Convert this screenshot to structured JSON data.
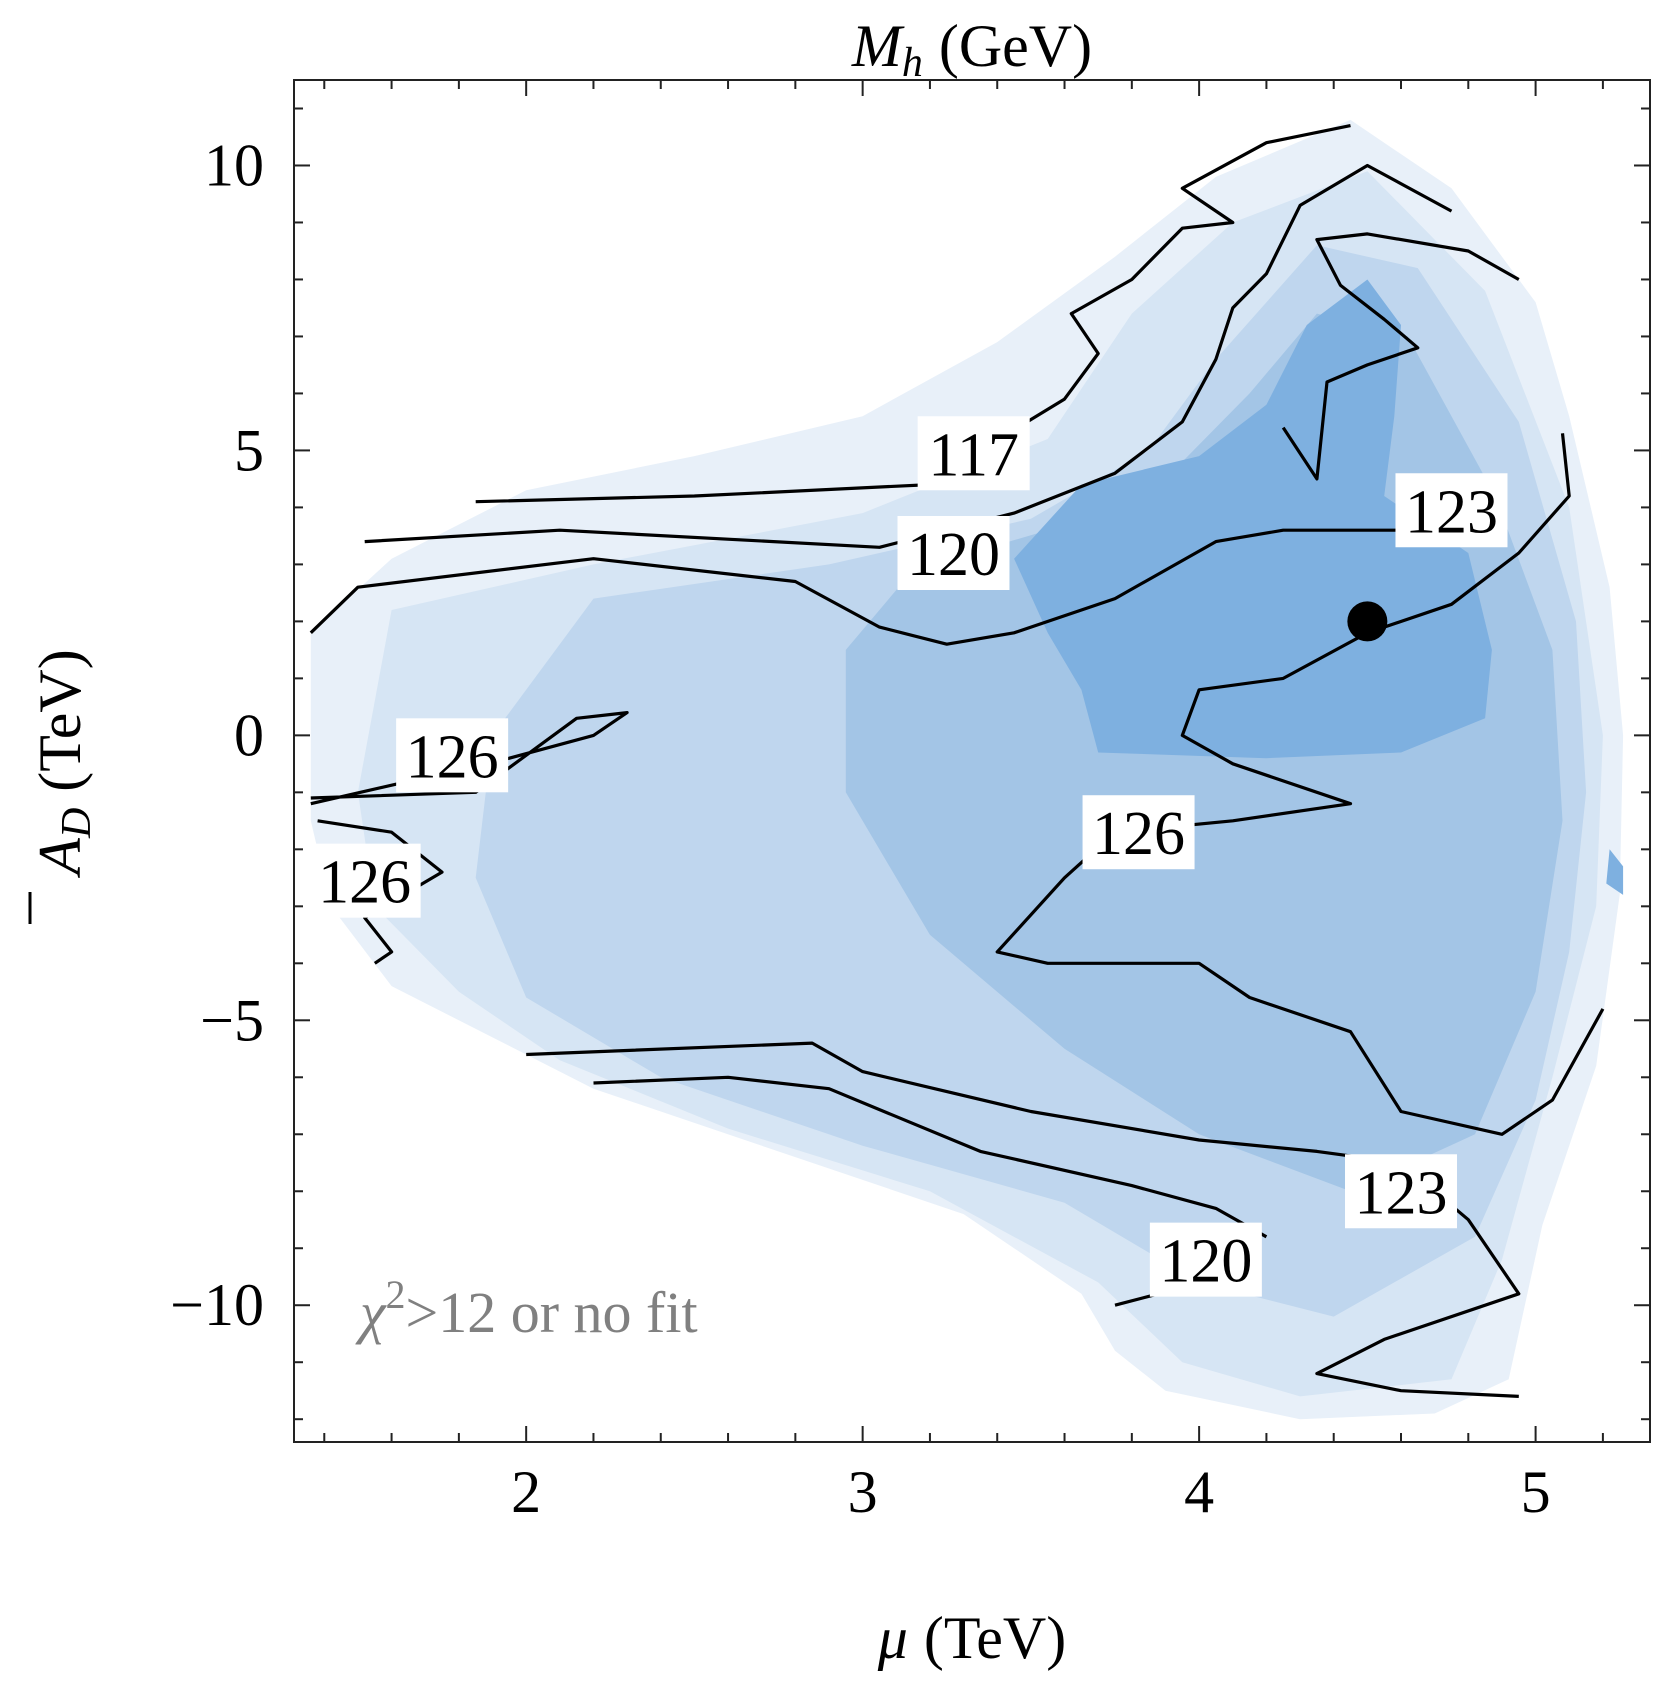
{
  "chart_data": {
    "type": "contour",
    "title": "M_h (GeV)",
    "title_parts": {
      "symbol": "M",
      "subscript": "h",
      "unit": "(GeV)"
    },
    "xlabel": "μ (TeV)",
    "xlabel_parts": {
      "symbol": "μ",
      "unit": "(TeV)"
    },
    "ylabel": "A̅_D (TeV)",
    "ylabel_parts": {
      "symbol": "A",
      "subscript": "D",
      "unit": "(TeV)"
    },
    "xlim": [
      1.31,
      5.34
    ],
    "ylim": [
      -12.4,
      11.5
    ],
    "xticks": [
      {
        "value": 2,
        "label": "2"
      },
      {
        "value": 3,
        "label": "3"
      },
      {
        "value": 4,
        "label": "4"
      },
      {
        "value": 5,
        "label": "5"
      }
    ],
    "yticks": [
      {
        "value": 10,
        "label": "10"
      },
      {
        "value": 5,
        "label": "5"
      },
      {
        "value": 0,
        "label": "0"
      },
      {
        "value": -5,
        "label": "−5"
      },
      {
        "value": -10,
        "label": "−10"
      }
    ],
    "x_minor_step": 0.2,
    "y_minor_step": 1,
    "grid": false,
    "colors": {
      "fill_1": "#e8f0f9",
      "fill_2": "#d6e5f4",
      "fill_3": "#bfd6ee",
      "fill_4": "#a3c5e6",
      "fill_5": "#7eb0e0",
      "contour_line": "#000000",
      "note_text": "#808080",
      "marker": "#000000"
    },
    "region_boundary": [
      [
        1.36,
        1.8
      ],
      [
        1.6,
        3.1
      ],
      [
        2.0,
        4.3
      ],
      [
        2.5,
        4.9
      ],
      [
        3.0,
        5.6
      ],
      [
        3.4,
        6.9
      ],
      [
        3.75,
        8.4
      ],
      [
        4.05,
        9.8
      ],
      [
        4.45,
        10.8
      ],
      [
        4.75,
        9.6
      ],
      [
        5.0,
        7.6
      ],
      [
        5.1,
        5.6
      ],
      [
        5.22,
        2.6
      ],
      [
        5.26,
        0.0
      ],
      [
        5.25,
        -2.8
      ],
      [
        5.18,
        -5.8
      ],
      [
        5.02,
        -8.6
      ],
      [
        4.92,
        -11.3
      ],
      [
        4.7,
        -11.9
      ],
      [
        4.3,
        -12.0
      ],
      [
        3.9,
        -11.5
      ],
      [
        3.75,
        -10.8
      ],
      [
        3.65,
        -9.8
      ],
      [
        3.3,
        -8.4
      ],
      [
        2.8,
        -7.4
      ],
      [
        2.2,
        -6.2
      ],
      [
        1.9,
        -5.3
      ],
      [
        1.6,
        -4.4
      ],
      [
        1.42,
        -3.0
      ],
      [
        1.36,
        -1.5
      ],
      [
        1.36,
        1.8
      ]
    ],
    "shading_levels": [
      {
        "level": "band-2",
        "region": [
          [
            1.6,
            2.2
          ],
          [
            2.2,
            3.0
          ],
          [
            3.0,
            3.9
          ],
          [
            3.55,
            5.2
          ],
          [
            3.8,
            7.4
          ],
          [
            4.1,
            9.0
          ],
          [
            4.5,
            9.9
          ],
          [
            4.85,
            7.8
          ],
          [
            5.1,
            4.0
          ],
          [
            5.2,
            0.0
          ],
          [
            5.18,
            -3.0
          ],
          [
            5.05,
            -6.0
          ],
          [
            4.9,
            -9.2
          ],
          [
            4.75,
            -11.3
          ],
          [
            4.3,
            -11.6
          ],
          [
            3.95,
            -11.0
          ],
          [
            3.7,
            -9.6
          ],
          [
            3.2,
            -8.0
          ],
          [
            2.6,
            -6.9
          ],
          [
            2.1,
            -5.7
          ],
          [
            1.8,
            -4.5
          ],
          [
            1.55,
            -3.0
          ],
          [
            1.5,
            -1.0
          ],
          [
            1.6,
            2.2
          ]
        ]
      },
      {
        "level": "band-3",
        "region": [
          [
            2.2,
            2.4
          ],
          [
            2.9,
            3.0
          ],
          [
            3.5,
            3.8
          ],
          [
            3.85,
            5.0
          ],
          [
            4.05,
            6.6
          ],
          [
            4.35,
            8.6
          ],
          [
            4.65,
            8.2
          ],
          [
            4.95,
            5.5
          ],
          [
            5.12,
            2.0
          ],
          [
            5.15,
            -1.0
          ],
          [
            5.1,
            -3.8
          ],
          [
            5.0,
            -6.4
          ],
          [
            4.82,
            -8.8
          ],
          [
            4.4,
            -10.2
          ],
          [
            4.0,
            -9.6
          ],
          [
            3.6,
            -8.2
          ],
          [
            3.0,
            -7.2
          ],
          [
            2.4,
            -6.0
          ],
          [
            2.0,
            -4.6
          ],
          [
            1.85,
            -2.5
          ],
          [
            1.9,
            0.0
          ],
          [
            2.2,
            2.4
          ]
        ]
      },
      {
        "level": "band-4",
        "region": [
          [
            3.15,
            2.9
          ],
          [
            3.55,
            3.6
          ],
          [
            3.95,
            4.8
          ],
          [
            4.15,
            6.0
          ],
          [
            4.35,
            7.4
          ],
          [
            4.62,
            7.0
          ],
          [
            4.88,
            4.2
          ],
          [
            5.05,
            1.5
          ],
          [
            5.08,
            -1.5
          ],
          [
            5.0,
            -4.5
          ],
          [
            4.82,
            -7.0
          ],
          [
            4.45,
            -8.0
          ],
          [
            4.0,
            -7.0
          ],
          [
            3.6,
            -5.5
          ],
          [
            3.2,
            -3.5
          ],
          [
            2.95,
            -1.0
          ],
          [
            2.95,
            1.5
          ],
          [
            3.15,
            2.9
          ]
        ]
      },
      {
        "level": "band-5",
        "region": [
          [
            3.45,
            3.1
          ],
          [
            3.65,
            4.4
          ],
          [
            4.0,
            4.9
          ],
          [
            4.2,
            5.8
          ],
          [
            4.32,
            7.2
          ],
          [
            4.5,
            8.0
          ],
          [
            4.6,
            7.2
          ],
          [
            4.58,
            5.6
          ],
          [
            4.55,
            4.2
          ],
          [
            4.8,
            3.2
          ],
          [
            4.87,
            1.5
          ],
          [
            4.85,
            0.3
          ],
          [
            4.6,
            -0.3
          ],
          [
            4.2,
            -0.4
          ],
          [
            3.7,
            -0.3
          ],
          [
            3.65,
            0.8
          ],
          [
            3.55,
            1.8
          ],
          [
            3.45,
            3.1
          ]
        ]
      },
      {
        "level": "band-5-speck",
        "region": [
          [
            5.22,
            -2.0
          ],
          [
            5.26,
            -2.3
          ],
          [
            5.26,
            -2.8
          ],
          [
            5.21,
            -2.6
          ],
          [
            5.22,
            -2.0
          ]
        ]
      }
    ],
    "contours": [
      {
        "level": 117,
        "points": [
          [
            1.85,
            4.1
          ],
          [
            2.5,
            4.2
          ],
          [
            3.2,
            4.4
          ],
          [
            3.35,
            5.0
          ],
          [
            3.6,
            5.9
          ],
          [
            3.7,
            6.7
          ],
          [
            3.62,
            7.4
          ],
          [
            3.8,
            8.0
          ],
          [
            3.95,
            8.9
          ],
          [
            4.1,
            9.0
          ],
          [
            3.95,
            9.6
          ],
          [
            4.2,
            10.4
          ],
          [
            4.45,
            10.7
          ]
        ],
        "label": "117",
        "label_at": [
          3.33,
          4.95
        ]
      },
      {
        "level": 120,
        "points": [
          [
            1.52,
            3.4
          ],
          [
            2.1,
            3.6
          ],
          [
            3.05,
            3.3
          ],
          [
            3.45,
            3.9
          ],
          [
            3.75,
            4.6
          ],
          [
            3.95,
            5.5
          ],
          [
            4.05,
            6.6
          ],
          [
            4.1,
            7.5
          ],
          [
            4.2,
            8.1
          ],
          [
            4.3,
            9.3
          ],
          [
            4.5,
            10.0
          ],
          [
            4.75,
            9.2
          ]
        ],
        "label": "120",
        "label_at": [
          3.27,
          3.2
        ]
      },
      {
        "level": 123,
        "points": [
          [
            4.25,
            5.4
          ],
          [
            4.35,
            4.5
          ],
          [
            4.38,
            6.2
          ],
          [
            4.5,
            6.5
          ],
          [
            4.65,
            6.8
          ],
          [
            4.55,
            7.3
          ],
          [
            4.42,
            7.9
          ],
          [
            4.35,
            8.7
          ],
          [
            4.5,
            8.8
          ],
          [
            4.8,
            8.5
          ],
          [
            4.95,
            8.0
          ]
        ],
        "label": "",
        "label_at": null
      },
      {
        "level": 123,
        "points": [
          [
            1.36,
            1.8
          ],
          [
            1.5,
            2.6
          ],
          [
            2.2,
            3.1
          ],
          [
            2.8,
            2.7
          ],
          [
            3.05,
            1.9
          ],
          [
            3.25,
            1.6
          ],
          [
            3.45,
            1.8
          ],
          [
            3.75,
            2.4
          ],
          [
            4.05,
            3.4
          ],
          [
            4.25,
            3.6
          ],
          [
            4.65,
            3.6
          ]
        ],
        "label": "123",
        "label_at": [
          4.75,
          3.95
        ]
      },
      {
        "level": 123,
        "points": [
          [
            2.0,
            -5.6
          ],
          [
            2.85,
            -5.4
          ],
          [
            3.0,
            -5.9
          ],
          [
            3.5,
            -6.6
          ],
          [
            4.0,
            -7.1
          ],
          [
            4.35,
            -7.3
          ],
          [
            4.6,
            -7.5
          ],
          [
            4.8,
            -8.5
          ],
          [
            4.95,
            -9.8
          ],
          [
            4.55,
            -10.6
          ],
          [
            4.35,
            -11.2
          ],
          [
            4.6,
            -11.5
          ],
          [
            4.95,
            -11.6
          ]
        ],
        "label": "123",
        "label_at": [
          4.6,
          -8.0
        ]
      },
      {
        "level": 120,
        "points": [
          [
            2.2,
            -6.1
          ],
          [
            2.6,
            -6.0
          ],
          [
            2.9,
            -6.2
          ],
          [
            3.35,
            -7.3
          ],
          [
            3.8,
            -7.9
          ],
          [
            4.05,
            -8.3
          ],
          [
            4.2,
            -8.8
          ]
        ],
        "label": "120",
        "label_at": [
          4.02,
          -9.2
        ]
      },
      {
        "level": 120,
        "points": [
          [
            3.75,
            -10.0
          ],
          [
            3.88,
            -9.8
          ]
        ],
        "label": "",
        "label_at": null
      },
      {
        "level": 126,
        "points": [
          [
            1.36,
            -1.1
          ],
          [
            1.85,
            -1.0
          ],
          [
            2.15,
            0.3
          ],
          [
            2.3,
            0.4
          ],
          [
            2.2,
            0.0
          ],
          [
            1.95,
            -0.4
          ],
          [
            1.36,
            -1.2
          ]
        ],
        "label": "126",
        "label_at": [
          1.78,
          -0.35
        ]
      },
      {
        "level": 126,
        "points": [
          [
            1.38,
            -1.5
          ],
          [
            1.6,
            -1.7
          ],
          [
            1.75,
            -2.4
          ],
          [
            1.52,
            -3.2
          ],
          [
            1.6,
            -3.8
          ],
          [
            1.55,
            -4.0
          ]
        ],
        "label": "126",
        "label_at": [
          1.52,
          -2.55
        ]
      },
      {
        "level": 126,
        "points": [
          [
            5.08,
            5.3
          ],
          [
            5.1,
            4.2
          ],
          [
            4.95,
            3.2
          ],
          [
            4.75,
            2.3
          ],
          [
            4.5,
            1.8
          ],
          [
            4.25,
            1.0
          ],
          [
            4.0,
            0.8
          ],
          [
            3.95,
            0.0
          ],
          [
            4.1,
            -0.5
          ],
          [
            4.45,
            -1.2
          ],
          [
            4.1,
            -1.5
          ],
          [
            3.75,
            -1.7
          ],
          [
            3.6,
            -2.5
          ],
          [
            3.4,
            -3.8
          ],
          [
            3.55,
            -4.0
          ],
          [
            4.0,
            -4.0
          ],
          [
            4.15,
            -4.6
          ],
          [
            4.45,
            -5.2
          ],
          [
            4.6,
            -6.6
          ],
          [
            4.9,
            -7.0
          ],
          [
            5.05,
            -6.4
          ],
          [
            5.2,
            -4.8
          ]
        ],
        "label": "126",
        "label_at": [
          3.82,
          -1.7
        ]
      }
    ],
    "best_fit_point": {
      "x": 4.5,
      "y": 2.0
    },
    "annotations": [
      {
        "text": "χ²>12 or no fit",
        "symbol": "χ",
        "superscript": "2",
        "rest": ">12 or no fit"
      }
    ]
  }
}
